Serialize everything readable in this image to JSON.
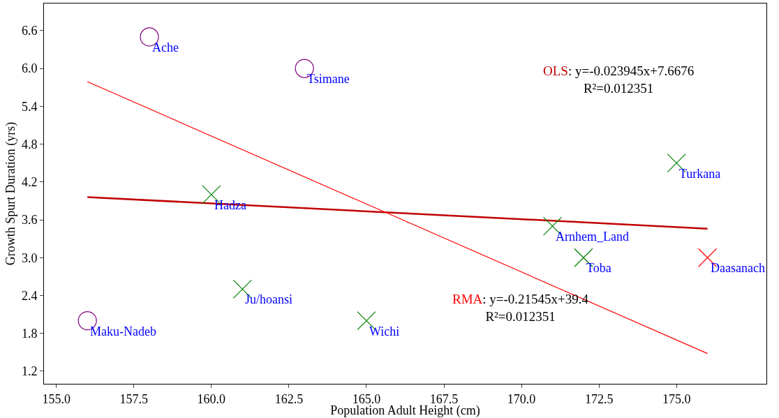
{
  "chart_data": {
    "type": "scatter",
    "xlabel": "Population Adult Height (cm)",
    "ylabel": "Growth Spurt Duration (yrs)",
    "xlim": [
      154.6,
      177.9
    ],
    "xticks": [
      {
        "value": 155,
        "label": "155.0"
      },
      {
        "value": 157.5,
        "label": "157.5"
      },
      {
        "value": 160,
        "label": "160.0"
      },
      {
        "value": 162.5,
        "label": "162.5"
      },
      {
        "value": 165,
        "label": "165.0"
      },
      {
        "value": 167.5,
        "label": "167.5"
      },
      {
        "value": 170,
        "label": "170.0"
      },
      {
        "value": 172.5,
        "label": "172.5"
      },
      {
        "value": 175,
        "label": "175.0"
      }
    ],
    "ylim": [
      1.0,
      7.03
    ],
    "yticks": [
      1.2,
      1.8,
      2.4,
      {
        "value": 3,
        "label": "3.0"
      },
      3.6,
      4.2,
      4.8,
      5.4,
      {
        "value": 6,
        "label": "6.0"
      },
      6.6
    ],
    "grid": false,
    "series": [
      {
        "type": "line",
        "name": "OLS",
        "color": "#c00000",
        "x": [
          156,
          176
        ],
        "values": [
          3.96,
          3.46
        ],
        "marker": "none",
        "line_style": "solid"
      },
      {
        "type": "line",
        "name": "RMA",
        "color": "#ff0000",
        "x": [
          156,
          176
        ],
        "values": [
          5.79,
          1.48
        ],
        "marker": "none",
        "line_style": "solid"
      },
      {
        "color": "#800080",
        "marker": "circle",
        "x": [
          158,
          163,
          156
        ],
        "values": [
          6.5,
          6.0,
          2.0
        ]
      },
      {
        "color": "#008000",
        "marker": "cross",
        "x": [
          160,
          161,
          165,
          171,
          172,
          175
        ],
        "values": [
          4.0,
          2.5,
          2.0,
          3.5,
          3.0,
          4.5
        ]
      },
      {
        "color": "#ff0000",
        "marker": "cross",
        "x": [
          176
        ],
        "values": [
          3.0
        ]
      }
    ],
    "annotations": [
      ": y=-0.023945x+7.6676\nR²=0.012351",
      ": y=-0.21545x+39.4\nR²=0.012351",
      {
        "text": "Ache",
        "x": 158,
        "y": 6.5
      },
      {
        "text": "Tsimane",
        "x": 163,
        "y": 6.0
      },
      {
        "text": "Maku-Nadeb",
        "x": 156,
        "y": 2.0
      },
      {
        "text": "Hadza",
        "x": 160,
        "y": 4.0
      },
      {
        "text": "Ju/hoansi",
        "x": 161,
        "y": 2.5
      },
      {
        "text": "Wichi",
        "x": 165,
        "y": 2.0
      },
      {
        "text": "Arnhem_Land",
        "x": 171,
        "y": 3.5
      },
      {
        "text": "Toba",
        "x": 172,
        "y": 3.0
      },
      {
        "text": "Turkana",
        "x": 175,
        "y": 4.5
      },
      {
        "text": "Daasanach",
        "x": 176,
        "y": 3.0
      }
    ]
  }
}
